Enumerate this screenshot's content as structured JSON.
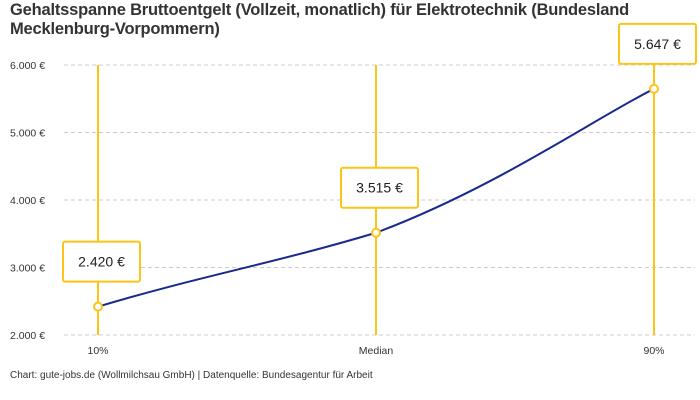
{
  "chart_data": {
    "type": "line",
    "title": "Gehaltsspanne Bruttoentgelt (Vollzeit, monatlich) für Elektrotechnik (Bundesland Mecklenburg-Vorpommern)",
    "categories": [
      "10%",
      "Median",
      "90%"
    ],
    "values": [
      2420,
      3515,
      5647
    ],
    "data_labels": [
      "2.420 €",
      "3.515 €",
      "5.647 €"
    ],
    "yticks": [
      2000,
      3000,
      4000,
      5000,
      6000
    ],
    "ytick_labels": [
      "2.000 €",
      "3.000 €",
      "4.000 €",
      "5.000 €",
      "6.000 €"
    ],
    "ylim": [
      2000,
      6000
    ],
    "grid": true,
    "colors": {
      "line": "#1a2a8c",
      "accent": "#fcc419",
      "grid": "#cccccc"
    }
  },
  "footer": "Chart: gute-jobs.de (Wollmilchsau GmbH) | Datenquelle: Bundesagentur für Arbeit"
}
